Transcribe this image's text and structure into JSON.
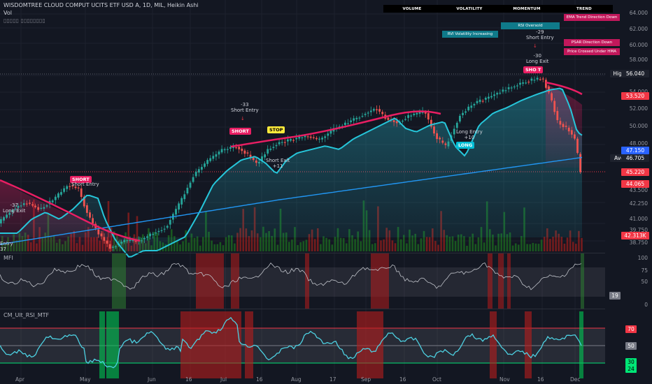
{
  "header": {
    "symbol_line": "WISDOMTREE CLOUD COMPUT UCITS ETF USD A, 1D, MIL, Heikin Ashi",
    "vol_label": "Vol",
    "sub_label": "▯▯▯▯▯ ▯▯▯▯▯▯▯▯"
  },
  "table": {
    "columns": [
      "VOLUME",
      "VOLATILITY",
      "MOMENTUM",
      "TREND"
    ],
    "badges": [
      {
        "text": "EMA Trend Direction Down",
        "color": "#c2185b"
      },
      {
        "text": "RSI Oversold",
        "color": "#0f7a8a"
      },
      {
        "text": "RVI Volatility Increasing",
        "color": "#0f7a8a"
      },
      {
        "text": "PSAR Direction Down",
        "color": "#c2185b"
      },
      {
        "text": "Price Crossed Under HMA",
        "color": "#c2185b"
      }
    ]
  },
  "price_axis": [
    "64.000",
    "62.000",
    "60.000",
    "58.000",
    "54.000",
    "52.000",
    "50.000",
    "48.000",
    "43.500",
    "42.250",
    "41.000",
    "39.750",
    "38.750"
  ],
  "price_tags": [
    {
      "label": "High",
      "value": "56.040",
      "color": "#1e222d"
    },
    {
      "label": "",
      "value": "53.520",
      "color": "#f23645"
    },
    {
      "label": "Avg",
      "value": "46.705",
      "color": "#1e222d"
    },
    {
      "label": "",
      "value": "47.150",
      "color": "#2962ff"
    },
    {
      "label": "",
      "value": "45.220",
      "color": "#f23645"
    },
    {
      "label": "",
      "value": "44.065",
      "color": "#f23645"
    },
    {
      "label": "",
      "value": "42.313K",
      "color": "#f23645"
    }
  ],
  "annotations": {
    "short_entry_1": {
      "num": "-33",
      "text": "Short Entry"
    },
    "short_entry_2": {
      "num": "-29",
      "text": "Short Entry"
    },
    "long_exit_1": {
      "num": "-30",
      "text": "Long Exit"
    },
    "long_exit_left": {
      "num": "-37",
      "text": "Long Exit"
    },
    "short_entry_left": {
      "text": "Short Entry"
    },
    "short_exit": {
      "text": "Short Exit",
      "num": "+11"
    },
    "long_entry": {
      "text": "Long Entry",
      "num": "+10"
    },
    "entry_left": {
      "text": "Entry"
    },
    "num_37": "37",
    "tag_short": "SHORT",
    "tag_stop": "STOP",
    "tag_long": "LONG",
    "tag_short_top": "SHO  T"
  },
  "mfi": {
    "title": "MFI",
    "axis": [
      "100",
      "75",
      "50",
      "25",
      "0"
    ],
    "value_tag": "19"
  },
  "rsi": {
    "title": "CM_Ult_RSI_MTF",
    "tags": [
      {
        "value": "70",
        "color": "#f23645"
      },
      {
        "value": "50",
        "color": "#787b86"
      },
      {
        "value": "30",
        "color": "#00e676"
      },
      {
        "value": "24",
        "color": "#00e676"
      }
    ]
  },
  "x_axis": [
    "Apr",
    "May",
    "Jun",
    "16",
    "Jul",
    "16",
    "Aug",
    "17",
    "Sep",
    "16",
    "Oct",
    "Nov",
    "16",
    "Dec"
  ],
  "colors": {
    "bull": "#26a69a",
    "bear": "#ef5350",
    "ema_fast": "#26c6da",
    "ema_slow": "#2196f3",
    "hma_down": "#e91e63",
    "background": "#131722"
  }
}
